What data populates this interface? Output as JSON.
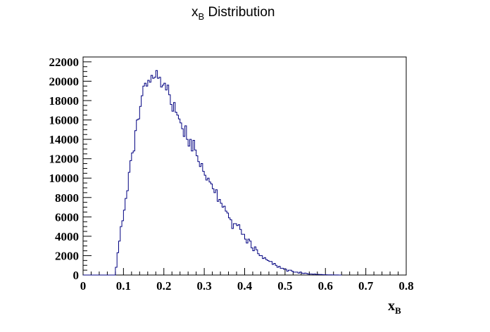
{
  "chart_data": {
    "type": "histogram",
    "title": {
      "main": "x",
      "sub": "B",
      "rest": " Distribution"
    },
    "xlabel": {
      "main": "x",
      "sub": "B"
    },
    "ylabel": "",
    "xlim": [
      0,
      0.8
    ],
    "ylim": [
      0,
      22500
    ],
    "x_ticks": [
      0,
      0.1,
      0.2,
      0.3,
      0.4,
      0.5,
      0.6,
      0.7,
      0.8
    ],
    "x_tick_labels": [
      "0",
      "0.1",
      "0.2",
      "0.3",
      "0.4",
      "0.5",
      "0.6",
      "0.7",
      "0.8"
    ],
    "y_ticks": [
      0,
      2000,
      4000,
      6000,
      8000,
      10000,
      12000,
      14000,
      16000,
      18000,
      20000,
      22000
    ],
    "y_tick_labels": [
      "0",
      "2000",
      "4000",
      "6000",
      "8000",
      "10000",
      "12000",
      "14000",
      "16000",
      "18000",
      "20000",
      "22000"
    ],
    "line_color": "#000080",
    "grid": false,
    "bin_edges_start": 0,
    "bin_width": 0.004,
    "counts": [
      0,
      0,
      0,
      0,
      0,
      0,
      0,
      0,
      0,
      0,
      0,
      0,
      0,
      0,
      0,
      0,
      0,
      0,
      0,
      0,
      800,
      2300,
      3500,
      5000,
      5600,
      6700,
      7900,
      8700,
      10600,
      11800,
      12600,
      12800,
      14900,
      16000,
      16100,
      17400,
      18500,
      19500,
      19800,
      19500,
      20100,
      19900,
      20600,
      20300,
      20400,
      21100,
      20300,
      20400,
      19400,
      19600,
      19800,
      19100,
      19600,
      18600,
      17600,
      16900,
      17800,
      16800,
      16500,
      16100,
      15700,
      15100,
      14300,
      15400,
      14000,
      13300,
      14000,
      12800,
      13900,
      12900,
      12300,
      11700,
      11200,
      11500,
      10700,
      10300,
      9800,
      10000,
      9600,
      9400,
      8900,
      8500,
      8800,
      7600,
      7800,
      7400,
      7000,
      7100,
      6600,
      6400,
      5900,
      5700,
      4800,
      5300,
      5300,
      5100,
      5200,
      4700,
      4200,
      4200,
      3700,
      3300,
      3700,
      3500,
      2800,
      2500,
      2900,
      2600,
      2200,
      2000,
      2000,
      1700,
      1800,
      1600,
      1500,
      1400,
      1400,
      1100,
      1200,
      1000,
      800,
      900,
      700,
      700,
      600,
      600,
      400,
      500,
      500,
      400,
      300,
      300,
      300,
      200,
      300,
      200,
      150,
      200,
      150,
      100,
      100,
      100,
      80,
      100,
      60,
      60,
      50,
      50,
      40,
      30,
      30,
      20,
      20,
      20,
      10,
      10,
      10,
      10,
      0,
      0
    ]
  }
}
